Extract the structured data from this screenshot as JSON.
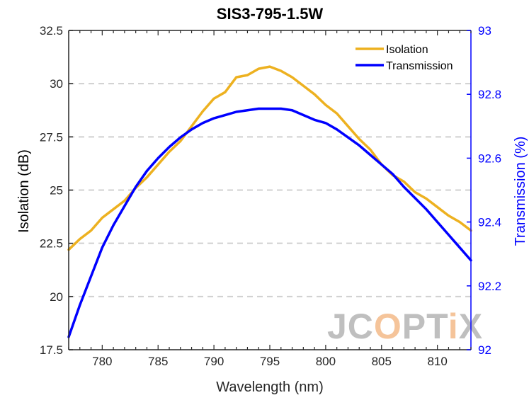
{
  "chart_data": {
    "type": "line",
    "title": "SIS3-795-1.5W",
    "xlabel": "Wavelength (nm)",
    "ylabel_left": "Isolation (dB)",
    "ylabel_right": "Transmission (%)",
    "xlim": [
      777,
      813
    ],
    "ylim_left": [
      17.5,
      32.5
    ],
    "ylim_right": [
      92,
      93
    ],
    "x_ticks": [
      "780",
      "785",
      "790",
      "795",
      "800",
      "805",
      "810"
    ],
    "y_ticks_left": [
      "17.5",
      "20",
      "22.5",
      "25",
      "27.5",
      "30",
      "32.5"
    ],
    "y_ticks_right": [
      "92",
      "92.2",
      "92.4",
      "92.6",
      "92.8",
      "93"
    ],
    "grid": "horizontal dashed",
    "legend": "top-right",
    "watermark": "JCOPTIX",
    "series": [
      {
        "name": "Isolation",
        "axis": "left",
        "color": "#EDB120",
        "x": [
          777,
          778,
          779,
          780,
          781,
          782,
          783,
          784,
          785,
          786,
          787,
          788,
          789,
          790,
          791,
          792,
          793,
          794,
          795,
          796,
          797,
          798,
          799,
          800,
          801,
          802,
          803,
          804,
          805,
          806,
          807,
          808,
          809,
          810,
          811,
          812,
          813
        ],
        "values": [
          22.2,
          22.7,
          23.1,
          23.7,
          24.1,
          24.5,
          25.1,
          25.6,
          26.2,
          26.8,
          27.3,
          28.0,
          28.7,
          29.3,
          29.6,
          30.3,
          30.4,
          30.7,
          30.8,
          30.6,
          30.3,
          29.9,
          29.5,
          29.0,
          28.6,
          28.0,
          27.4,
          26.9,
          26.2,
          25.7,
          25.4,
          24.9,
          24.6,
          24.2,
          23.8,
          23.5,
          23.1
        ]
      },
      {
        "name": "Transmission",
        "axis": "right",
        "color": "#0000FF",
        "x": [
          777,
          778,
          779,
          780,
          781,
          782,
          783,
          784,
          785,
          786,
          787,
          788,
          789,
          790,
          791,
          792,
          793,
          794,
          795,
          796,
          797,
          798,
          799,
          800,
          801,
          802,
          803,
          804,
          805,
          806,
          807,
          808,
          809,
          810,
          811,
          812,
          813
        ],
        "values": [
          92.04,
          92.14,
          92.23,
          92.32,
          92.39,
          92.45,
          92.51,
          92.56,
          92.6,
          92.635,
          92.665,
          92.69,
          92.71,
          92.725,
          92.735,
          92.745,
          92.75,
          92.755,
          92.755,
          92.755,
          92.75,
          92.735,
          92.72,
          92.71,
          92.69,
          92.665,
          92.64,
          92.61,
          92.58,
          92.55,
          92.51,
          92.475,
          92.44,
          92.4,
          92.36,
          92.32,
          92.28
        ]
      }
    ]
  }
}
